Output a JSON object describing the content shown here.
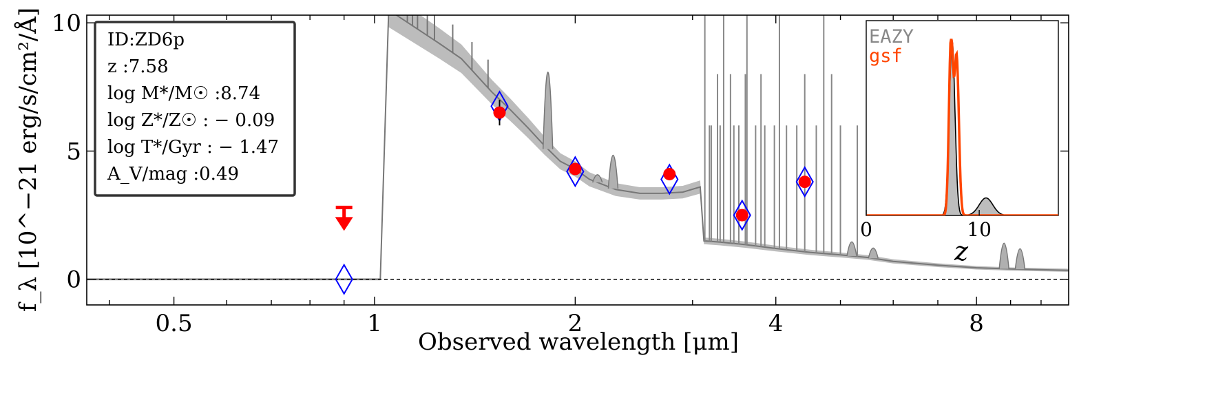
{
  "chart_data": {
    "type": "line",
    "xlabel": "Observed wavelength [μm]",
    "ylabel": "f_λ [10^−21 erg/s/cm²/Å]",
    "x_scale": "log",
    "xlim": [
      0.37,
      11.0
    ],
    "ylim": [
      -1.0,
      10.3
    ],
    "x_ticks": [
      {
        "value": 0.5,
        "label": "0.5"
      },
      {
        "value": 1,
        "label": "1"
      },
      {
        "value": 2,
        "label": "2"
      },
      {
        "value": 4,
        "label": "4"
      },
      {
        "value": 8,
        "label": "8"
      }
    ],
    "y_ticks": [
      {
        "value": 0,
        "label": "0"
      },
      {
        "value": 5,
        "label": "5"
      },
      {
        "value": 10,
        "label": "10"
      }
    ],
    "info_box": [
      {
        "label": "ID:",
        "value": "ZD6p"
      },
      {
        "label": "z :",
        "value": "7.58"
      },
      {
        "label": "log M*/M☉ :",
        "value": "8.74"
      },
      {
        "label": "log Z*/Z☉ : ",
        "value": "− 0.09"
      },
      {
        "label": "log T*/Gyr : ",
        "value": "− 1.47"
      },
      {
        "label": "A_V/mag :",
        "value": "0.49"
      }
    ],
    "model_spectrum": {
      "continuum": [
        [
          0.37,
          0
        ],
        [
          1.02,
          0
        ],
        [
          1.05,
          10.5
        ],
        [
          1.25,
          9.2
        ],
        [
          1.35,
          8.6
        ],
        [
          1.5,
          7.3
        ],
        [
          1.6,
          6.6
        ],
        [
          1.7,
          5.9
        ],
        [
          1.8,
          5.2
        ],
        [
          1.9,
          4.6
        ],
        [
          2.0,
          4.3
        ],
        [
          2.1,
          3.9
        ],
        [
          2.3,
          3.5
        ],
        [
          2.5,
          3.35
        ],
        [
          2.7,
          3.35
        ],
        [
          2.9,
          3.4
        ],
        [
          3.08,
          3.6
        ],
        [
          3.12,
          1.5
        ],
        [
          3.3,
          1.45
        ],
        [
          3.6,
          1.35
        ],
        [
          4.0,
          1.2
        ],
        [
          4.5,
          1.05
        ],
        [
          5.0,
          0.95
        ],
        [
          5.5,
          0.85
        ],
        [
          6.0,
          0.7
        ],
        [
          7.0,
          0.55
        ],
        [
          8.0,
          0.45
        ],
        [
          9.0,
          0.4
        ],
        [
          11.0,
          0.35
        ]
      ],
      "features": [
        [
          1.82,
          3.0
        ],
        [
          2.28,
          1.3
        ],
        [
          2.16,
          0.3
        ],
        [
          5.2,
          0.55
        ],
        [
          5.6,
          0.4
        ],
        [
          8.8,
          1.0
        ],
        [
          9.3,
          0.8
        ]
      ]
    },
    "observed": [
      {
        "x": 1.54,
        "y": 6.5,
        "err": 0.5
      },
      {
        "x": 2.0,
        "y": 4.3,
        "err": 0.15
      },
      {
        "x": 2.77,
        "y": 4.1,
        "err": 0.1
      },
      {
        "x": 3.56,
        "y": 2.5,
        "err": 0.15
      },
      {
        "x": 4.42,
        "y": 3.8,
        "err": 0.1
      }
    ],
    "upper_limit": {
      "x": 0.9,
      "y": 2.8
    },
    "model_photometry": [
      {
        "x": 0.9,
        "y": 0.0
      },
      {
        "x": 1.54,
        "y": 6.75
      },
      {
        "x": 2.0,
        "y": 4.2
      },
      {
        "x": 2.77,
        "y": 3.9
      },
      {
        "x": 3.56,
        "y": 2.5
      },
      {
        "x": 4.42,
        "y": 3.8
      }
    ],
    "inset": {
      "xlabel": "z",
      "xlim": [
        0,
        17
      ],
      "x_ticks": [
        {
          "value": 0,
          "label": "0"
        },
        {
          "value": 10,
          "label": "10"
        }
      ],
      "series": [
        {
          "name": "EAZY",
          "color": "#888888",
          "peaks": [
            {
              "z": 7.6,
              "height": 1.0,
              "width": 0.25
            },
            {
              "z": 10.6,
              "height": 0.1,
              "width": 0.6
            }
          ]
        },
        {
          "name": "gsf",
          "color": "#ff4500",
          "peaks": [
            {
              "z": 7.5,
              "height": 1.0,
              "width": 0.18
            },
            {
              "z": 8.0,
              "height": 0.9,
              "width": 0.2
            }
          ]
        }
      ]
    },
    "colors": {
      "observed": "#ff0000",
      "model_phot": "#0000ff",
      "spectrum": "#888888",
      "band": "#b0b0b0"
    }
  }
}
